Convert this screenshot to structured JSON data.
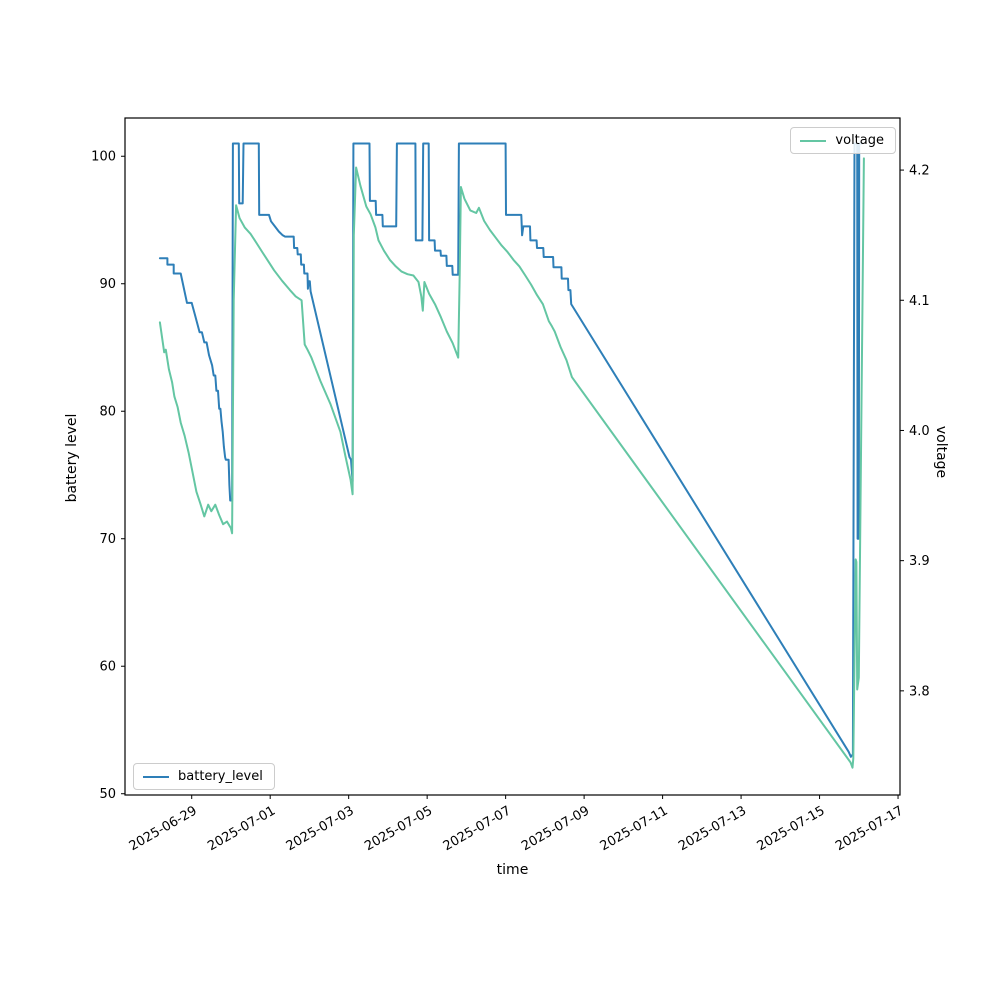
{
  "chart_data": {
    "type": "line",
    "title": "",
    "xlabel": "time",
    "x_unit": "days since 2025-06-29 00:00",
    "xlim": [
      -1.7,
      18.05
    ],
    "grid": false,
    "x_ticks": [
      {
        "value": 0,
        "label": "2025-06-29"
      },
      {
        "value": 2,
        "label": "2025-07-01"
      },
      {
        "value": 4,
        "label": "2025-07-03"
      },
      {
        "value": 6,
        "label": "2025-07-05"
      },
      {
        "value": 8,
        "label": "2025-07-07"
      },
      {
        "value": 10,
        "label": "2025-07-09"
      },
      {
        "value": 12,
        "label": "2025-07-11"
      },
      {
        "value": 14,
        "label": "2025-07-13"
      },
      {
        "value": 16,
        "label": "2025-07-15"
      },
      {
        "value": 18,
        "label": "2025-07-17"
      }
    ],
    "left_axis": {
      "label": "battery level",
      "ylim": [
        49.9,
        103.0
      ],
      "tick_values": [
        50,
        60,
        70,
        80,
        90,
        100
      ],
      "tick_labels": [
        "50",
        "60",
        "70",
        "80",
        "90",
        "100"
      ]
    },
    "right_axis": {
      "label": "voltage",
      "ylim": [
        3.72,
        4.24
      ],
      "tick_values": [
        3.8,
        3.9,
        4.0,
        4.1,
        4.2
      ],
      "tick_labels": [
        "3.8",
        "3.9",
        "4.0",
        "4.1",
        "4.2"
      ]
    },
    "legends": [
      {
        "label": "voltage",
        "color": "#64c6a3",
        "position": "upper right"
      },
      {
        "label": "battery_level",
        "color": "#2e7fb8",
        "position": "lower left"
      }
    ],
    "series": [
      {
        "name": "battery_level",
        "axis": "left",
        "color": "#2e7fb8",
        "points": [
          [
            -0.81,
            92
          ],
          [
            -0.62,
            92
          ],
          [
            -0.62,
            91.5
          ],
          [
            -0.46,
            91.5
          ],
          [
            -0.46,
            90.8
          ],
          [
            -0.28,
            90.8
          ],
          [
            -0.12,
            88.5
          ],
          [
            0.0,
            88.5
          ],
          [
            0.08,
            87.6
          ],
          [
            0.2,
            86.2
          ],
          [
            0.26,
            86.2
          ],
          [
            0.32,
            85.4
          ],
          [
            0.38,
            85.4
          ],
          [
            0.44,
            84.4
          ],
          [
            0.52,
            83.6
          ],
          [
            0.56,
            82.8
          ],
          [
            0.6,
            82.8
          ],
          [
            0.63,
            81.6
          ],
          [
            0.67,
            81.6
          ],
          [
            0.7,
            80.2
          ],
          [
            0.73,
            80.2
          ],
          [
            0.76,
            79.2
          ],
          [
            0.79,
            78.4
          ],
          [
            0.82,
            77.2
          ],
          [
            0.85,
            76.4
          ],
          [
            0.87,
            76.2
          ],
          [
            0.94,
            76.2
          ],
          [
            0.96,
            74.2
          ],
          [
            0.98,
            73
          ],
          [
            1.03,
            73
          ],
          [
            1.05,
            101
          ],
          [
            1.2,
            101
          ],
          [
            1.21,
            96.3
          ],
          [
            1.3,
            96.3
          ],
          [
            1.32,
            101
          ],
          [
            1.71,
            101
          ],
          [
            1.72,
            95.4
          ],
          [
            1.97,
            95.4
          ],
          [
            2.02,
            94.9
          ],
          [
            2.12,
            94.5
          ],
          [
            2.22,
            94.1
          ],
          [
            2.32,
            93.8
          ],
          [
            2.38,
            93.7
          ],
          [
            2.6,
            93.7
          ],
          [
            2.61,
            92.8
          ],
          [
            2.69,
            92.8
          ],
          [
            2.7,
            92.3
          ],
          [
            2.78,
            92.3
          ],
          [
            2.79,
            91.5
          ],
          [
            2.86,
            91.5
          ],
          [
            2.87,
            90.8
          ],
          [
            2.95,
            90.8
          ],
          [
            2.96,
            89.6
          ],
          [
            2.98,
            90.2
          ],
          [
            3.01,
            90.2
          ],
          [
            3.03,
            89.4
          ],
          [
            4.02,
            76.4
          ],
          [
            4.06,
            76.2
          ],
          [
            4.1,
            74.5
          ],
          [
            4.12,
            101
          ],
          [
            4.53,
            101
          ],
          [
            4.54,
            96.5
          ],
          [
            4.69,
            96.5
          ],
          [
            4.7,
            95.4
          ],
          [
            4.86,
            95.4
          ],
          [
            4.87,
            94.5
          ],
          [
            5.21,
            94.5
          ],
          [
            5.23,
            101
          ],
          [
            5.7,
            101
          ],
          [
            5.71,
            93.4
          ],
          [
            5.88,
            93.4
          ],
          [
            5.9,
            101
          ],
          [
            6.04,
            101
          ],
          [
            6.05,
            93.4
          ],
          [
            6.19,
            93.4
          ],
          [
            6.2,
            92.6
          ],
          [
            6.34,
            92.6
          ],
          [
            6.35,
            92.2
          ],
          [
            6.49,
            92.2
          ],
          [
            6.5,
            91.4
          ],
          [
            6.64,
            91.4
          ],
          [
            6.65,
            90.7
          ],
          [
            6.79,
            90.7
          ],
          [
            6.81,
            101
          ],
          [
            8.0,
            101
          ],
          [
            8.01,
            95.4
          ],
          [
            8.4,
            95.4
          ],
          [
            8.42,
            93.8
          ],
          [
            8.45,
            94.5
          ],
          [
            8.62,
            94.5
          ],
          [
            8.63,
            93.4
          ],
          [
            8.79,
            93.4
          ],
          [
            8.8,
            92.8
          ],
          [
            8.96,
            92.8
          ],
          [
            8.97,
            92.1
          ],
          [
            9.21,
            92.1
          ],
          [
            9.22,
            91.3
          ],
          [
            9.42,
            91.3
          ],
          [
            9.43,
            90.4
          ],
          [
            9.59,
            90.4
          ],
          [
            9.6,
            89.5
          ],
          [
            9.65,
            89.5
          ],
          [
            9.67,
            88.4
          ],
          [
            16.74,
            53.3
          ],
          [
            16.8,
            52.9
          ],
          [
            16.85,
            53.1
          ],
          [
            16.89,
            101
          ],
          [
            16.96,
            101
          ],
          [
            16.97,
            70
          ],
          [
            17.0,
            70
          ],
          [
            17.01,
            101
          ],
          [
            17.08,
            101
          ]
        ]
      },
      {
        "name": "voltage",
        "axis": "right",
        "color": "#64c6a3",
        "points": [
          [
            -0.81,
            4.083
          ],
          [
            -0.74,
            4.068
          ],
          [
            -0.7,
            4.06
          ],
          [
            -0.66,
            4.062
          ],
          [
            -0.58,
            4.047
          ],
          [
            -0.5,
            4.037
          ],
          [
            -0.44,
            4.026
          ],
          [
            -0.36,
            4.018
          ],
          [
            -0.28,
            4.006
          ],
          [
            -0.18,
            3.996
          ],
          [
            -0.08,
            3.983
          ],
          [
            0.02,
            3.968
          ],
          [
            0.12,
            3.953
          ],
          [
            0.22,
            3.944
          ],
          [
            0.32,
            3.934
          ],
          [
            0.42,
            3.943
          ],
          [
            0.5,
            3.938
          ],
          [
            0.6,
            3.943
          ],
          [
            0.7,
            3.935
          ],
          [
            0.8,
            3.928
          ],
          [
            0.9,
            3.93
          ],
          [
            1.0,
            3.925
          ],
          [
            1.03,
            3.921
          ],
          [
            1.07,
            4.1
          ],
          [
            1.13,
            4.173
          ],
          [
            1.22,
            4.163
          ],
          [
            1.35,
            4.156
          ],
          [
            1.5,
            4.151
          ],
          [
            1.65,
            4.144
          ],
          [
            1.8,
            4.137
          ],
          [
            1.95,
            4.13
          ],
          [
            2.1,
            4.123
          ],
          [
            2.3,
            4.115
          ],
          [
            2.5,
            4.108
          ],
          [
            2.65,
            4.103
          ],
          [
            2.8,
            4.1
          ],
          [
            2.88,
            4.066
          ],
          [
            2.95,
            4.062
          ],
          [
            3.05,
            4.056
          ],
          [
            3.28,
            4.038
          ],
          [
            3.54,
            4.02
          ],
          [
            3.79,
            3.999
          ],
          [
            3.92,
            3.98
          ],
          [
            4.05,
            3.962
          ],
          [
            4.1,
            3.951
          ],
          [
            4.13,
            4.15
          ],
          [
            4.19,
            4.202
          ],
          [
            4.3,
            4.188
          ],
          [
            4.45,
            4.172
          ],
          [
            4.56,
            4.166
          ],
          [
            4.68,
            4.156
          ],
          [
            4.76,
            4.146
          ],
          [
            4.9,
            4.138
          ],
          [
            5.05,
            4.131
          ],
          [
            5.2,
            4.126
          ],
          [
            5.35,
            4.122
          ],
          [
            5.5,
            4.12
          ],
          [
            5.65,
            4.119
          ],
          [
            5.78,
            4.114
          ],
          [
            5.85,
            4.103
          ],
          [
            5.89,
            4.092
          ],
          [
            5.93,
            4.114
          ],
          [
            6.05,
            4.105
          ],
          [
            6.2,
            4.097
          ],
          [
            6.35,
            4.087
          ],
          [
            6.5,
            4.076
          ],
          [
            6.65,
            4.067
          ],
          [
            6.79,
            4.056
          ],
          [
            6.83,
            4.12
          ],
          [
            6.86,
            4.187
          ],
          [
            6.95,
            4.178
          ],
          [
            7.1,
            4.169
          ],
          [
            7.25,
            4.167
          ],
          [
            7.32,
            4.171
          ],
          [
            7.45,
            4.161
          ],
          [
            7.6,
            4.154
          ],
          [
            7.75,
            4.148
          ],
          [
            7.9,
            4.142
          ],
          [
            8.05,
            4.137
          ],
          [
            8.2,
            4.131
          ],
          [
            8.35,
            4.126
          ],
          [
            8.5,
            4.119
          ],
          [
            8.65,
            4.112
          ],
          [
            8.8,
            4.104
          ],
          [
            8.95,
            4.097
          ],
          [
            9.1,
            4.084
          ],
          [
            9.18,
            4.08
          ],
          [
            9.25,
            4.076
          ],
          [
            9.4,
            4.064
          ],
          [
            9.55,
            4.054
          ],
          [
            9.69,
            4.041
          ],
          [
            16.79,
            3.745
          ],
          [
            16.84,
            3.741
          ],
          [
            16.86,
            3.748
          ],
          [
            16.92,
            3.901
          ],
          [
            16.94,
            3.899
          ],
          [
            16.96,
            3.801
          ],
          [
            17.0,
            3.81
          ],
          [
            17.13,
            4.209
          ]
        ]
      }
    ]
  }
}
